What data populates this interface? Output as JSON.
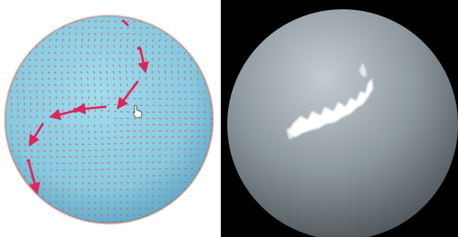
{
  "left_view": {
    "colors": {
      "background": "#ffffff",
      "sphere_fill": "#8ccfe6",
      "sphere_edge": "#5aa8c8",
      "field_arrow": "#d9663a",
      "path": "#e0245e"
    },
    "cursor_icon": "hand-pointer-icon"
  },
  "right_view": {
    "colors": {
      "background": "#000000",
      "sphere_light": "#c3ccd2",
      "sphere_mid": "#8e999f",
      "sphere_dark": "#4f575c",
      "streak": "#ffffff"
    }
  }
}
